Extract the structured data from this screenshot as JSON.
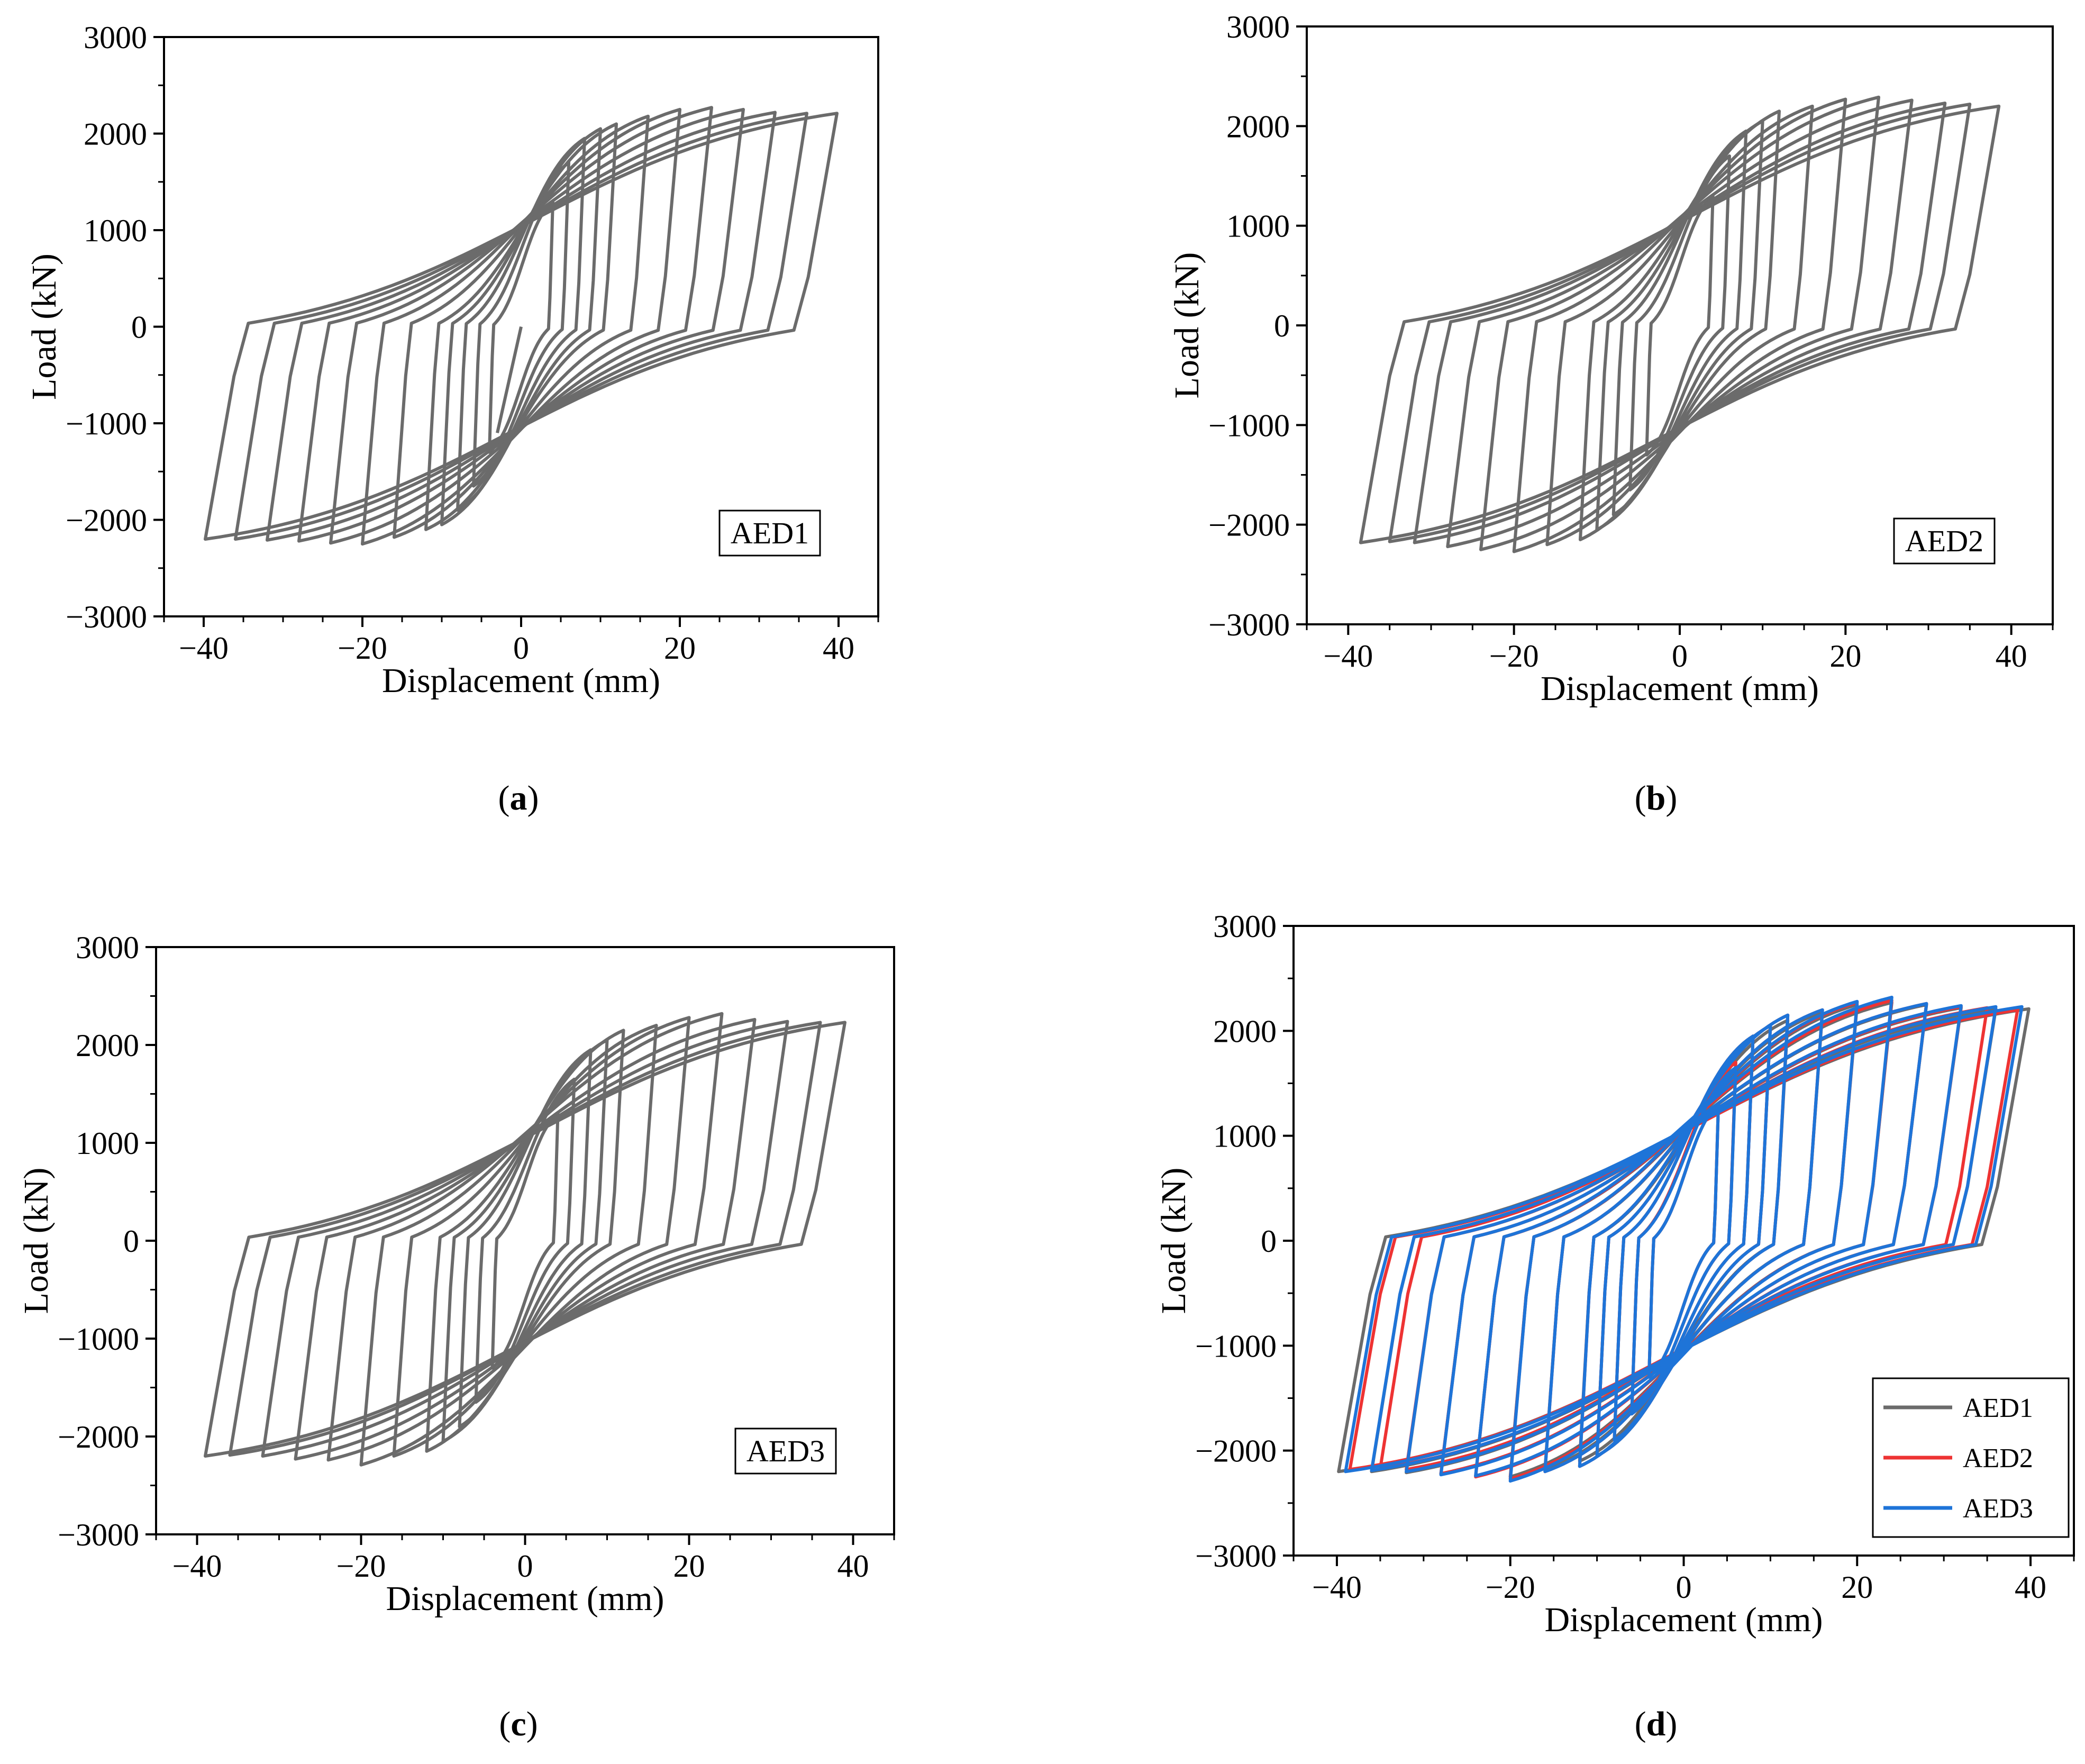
{
  "colors": {
    "AED1": "#6b6b6b",
    "AED2": "#ee3333",
    "AED3": "#1e74d8",
    "axis": "#000000"
  },
  "chart_data": [
    {
      "id": "a",
      "type": "line",
      "caption_open": "(",
      "caption_letter": "a",
      "caption_close": ")",
      "xlabel": "Displacement (mm)",
      "ylabel": "Load (kN)",
      "xlim": [
        -45,
        45
      ],
      "ylim": [
        -3000,
        3000
      ],
      "xticks": [
        -40,
        -20,
        0,
        20,
        40
      ],
      "yticks": [
        -3000,
        -2000,
        -1000,
        0,
        1000,
        2000,
        3000
      ],
      "annotation": "AED1",
      "series": [
        {
          "name": "AED1",
          "color_key": "AED1",
          "amplitudes": [
            4,
            6,
            8,
            10,
            12,
            16,
            20,
            24,
            28,
            32,
            36,
            39.8
          ],
          "peak_load": [
            1300,
            1700,
            1950,
            2050,
            2100,
            2180,
            2250,
            2270,
            2250,
            2220,
            2210,
            2210
          ],
          "neg_load": [
            -1300,
            -1650,
            -1900,
            -2050,
            -2100,
            -2180,
            -2250,
            -2240,
            -2220,
            -2210,
            -2200,
            -2200
          ],
          "initial_point": [
            -3,
            -1100
          ]
        }
      ]
    },
    {
      "id": "b",
      "type": "line",
      "caption_open": "(",
      "caption_letter": "b",
      "caption_close": ")",
      "xlabel": "Displacement (mm)",
      "ylabel": "Load (kN)",
      "xlim": [
        -45,
        45
      ],
      "ylim": [
        -3000,
        3000
      ],
      "xticks": [
        -40,
        -20,
        0,
        20,
        40
      ],
      "yticks": [
        -3000,
        -2000,
        -1000,
        0,
        1000,
        2000,
        3000
      ],
      "annotation": "AED2",
      "series": [
        {
          "name": "AED2",
          "color_key": "AED1",
          "amplitudes": [
            4,
            6,
            8,
            10,
            12,
            16,
            20,
            24,
            28,
            32,
            35,
            38.5
          ],
          "peak_load": [
            1300,
            1700,
            1950,
            2050,
            2150,
            2200,
            2270,
            2290,
            2260,
            2230,
            2220,
            2200
          ],
          "neg_load": [
            -1300,
            -1650,
            -1900,
            -2050,
            -2150,
            -2200,
            -2270,
            -2250,
            -2220,
            -2180,
            -2170,
            -2180
          ],
          "initial_point": [
            0,
            0
          ]
        }
      ]
    },
    {
      "id": "c",
      "type": "line",
      "caption_open": "(",
      "caption_letter": "c",
      "caption_close": ")",
      "xlabel": "Displacement (mm)",
      "ylabel": "Load (kN)",
      "xlim": [
        -45,
        45
      ],
      "ylim": [
        -3000,
        3000
      ],
      "xticks": [
        -40,
        -20,
        0,
        20,
        40
      ],
      "yticks": [
        -3000,
        -2000,
        -1000,
        0,
        1000,
        2000,
        3000
      ],
      "annotation": "AED3",
      "series": [
        {
          "name": "AED3",
          "color_key": "AED1",
          "amplitudes": [
            4,
            6,
            8,
            10,
            12,
            16,
            20,
            24,
            28,
            32,
            36,
            39
          ],
          "peak_load": [
            1300,
            1650,
            1950,
            2050,
            2150,
            2200,
            2280,
            2320,
            2260,
            2240,
            2230,
            2230
          ],
          "neg_load": [
            -1300,
            -1650,
            -1900,
            -2050,
            -2150,
            -2200,
            -2290,
            -2240,
            -2230,
            -2200,
            -2190,
            -2200
          ],
          "initial_point": [
            0,
            0
          ]
        }
      ]
    },
    {
      "id": "d",
      "type": "line",
      "caption_open": "(",
      "caption_letter": "d",
      "caption_close": ")",
      "xlabel": "Displacement (mm)",
      "ylabel": "Load (kN)",
      "xlim": [
        -45,
        45
      ],
      "ylim": [
        -3000,
        3000
      ],
      "xticks": [
        -40,
        -20,
        0,
        20,
        40
      ],
      "yticks": [
        -3000,
        -2000,
        -1000,
        0,
        1000,
        2000,
        3000
      ],
      "legend_position": "bottom-right",
      "legend": [
        "AED1",
        "AED2",
        "AED3"
      ],
      "series": [
        {
          "name": "AED1",
          "color_key": "AED1",
          "amplitudes": [
            4,
            6,
            8,
            10,
            12,
            16,
            20,
            24,
            28,
            32,
            36,
            39.8
          ],
          "peak_load": [
            1300,
            1700,
            1950,
            2050,
            2100,
            2180,
            2250,
            2270,
            2250,
            2220,
            2210,
            2210
          ],
          "neg_load": [
            -1300,
            -1650,
            -1900,
            -2050,
            -2100,
            -2180,
            -2250,
            -2240,
            -2220,
            -2210,
            -2200,
            -2200
          ],
          "initial_point": [
            0,
            0
          ]
        },
        {
          "name": "AED2",
          "color_key": "AED2",
          "amplitudes": [
            4,
            6,
            8,
            10,
            12,
            16,
            20,
            24,
            28,
            32,
            35,
            38.5
          ],
          "peak_load": [
            1300,
            1700,
            1950,
            2050,
            2150,
            2200,
            2270,
            2290,
            2260,
            2230,
            2220,
            2200
          ],
          "neg_load": [
            -1300,
            -1650,
            -1900,
            -2050,
            -2150,
            -2200,
            -2270,
            -2250,
            -2220,
            -2180,
            -2170,
            -2180
          ],
          "initial_point": [
            0,
            0
          ]
        },
        {
          "name": "AED3",
          "color_key": "AED3",
          "amplitudes": [
            4,
            6,
            8,
            10,
            12,
            16,
            20,
            24,
            28,
            32,
            36,
            39
          ],
          "peak_load": [
            1300,
            1650,
            1950,
            2050,
            2150,
            2200,
            2280,
            2320,
            2260,
            2240,
            2230,
            2230
          ],
          "neg_load": [
            -1300,
            -1650,
            -1900,
            -2050,
            -2150,
            -2200,
            -2290,
            -2240,
            -2230,
            -2200,
            -2190,
            -2200
          ],
          "initial_point": [
            0,
            0
          ]
        }
      ]
    }
  ]
}
